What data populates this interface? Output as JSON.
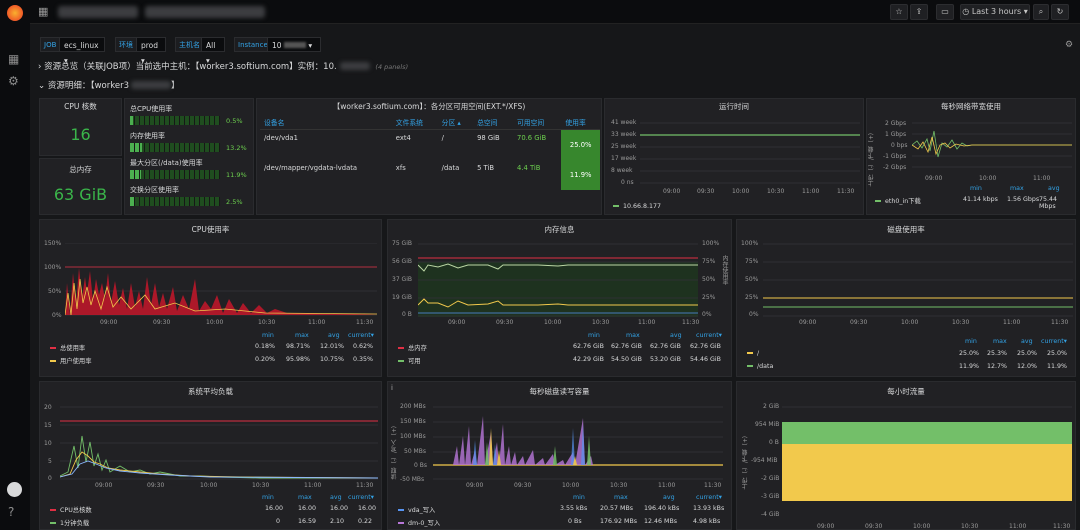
{
  "topbar": {
    "time_range": "Last 3 hours"
  },
  "vars": [
    {
      "label": "JOB",
      "value": "ecs_linux"
    },
    {
      "label": "环境",
      "value": "prod"
    },
    {
      "label": "主机名",
      "value": "All"
    },
    {
      "label": "Instance",
      "value": "10"
    }
  ],
  "rows": {
    "overview": "资源总览（关联JOB项）当前选中主机：【worker3.softium.com】实例：10.",
    "overview_count": "(4 panels)",
    "detail": "资源明细：【worker3"
  },
  "cpu_cores": {
    "title": "CPU 核数",
    "value": "16"
  },
  "total_mem": {
    "title": "总内存",
    "value": "63 GiB"
  },
  "bargauges": [
    {
      "label": "总CPU使用率",
      "pct": "0.5%",
      "fill": 0.005
    },
    {
      "label": "内存使用率",
      "pct": "13.2%",
      "fill": 0.132
    },
    {
      "label": "最大分区(/data)使用率",
      "pct": "11.9%",
      "fill": 0.119
    },
    {
      "label": "交换分区使用率",
      "pct": "2.5%",
      "fill": 0.025
    }
  ],
  "disk_table": {
    "title": "【worker3.softium.com】：各分区可用空间(EXT.*/XFS)",
    "headers": [
      "设备名",
      "文件系统",
      "分区 ▴",
      "总空间",
      "可用空间",
      "使用率"
    ],
    "rows": [
      [
        "/dev/vda1",
        "ext4",
        "/",
        "98 GiB",
        "70.6 GiB",
        "25.0%"
      ],
      [
        "/dev/mapper/vgdata-lvdata",
        "xfs",
        "/data",
        "5 TiB",
        "4.4 TiB",
        "11.9%"
      ]
    ]
  },
  "uptime": {
    "title": "运行时间",
    "yticks": [
      "41 week",
      "33 week",
      "25 week",
      "17 week",
      "8 week",
      "0 ns"
    ],
    "xticks": [
      "09:00",
      "09:30",
      "10:00",
      "10:30",
      "11:00",
      "11:30"
    ],
    "legend": "10.66.8.177"
  },
  "net": {
    "title": "每秒网络带宽使用",
    "yticks": [
      "2 Gbps",
      "1 Gbps",
      "0 bps",
      "-1 Gbps",
      "-2 Gbps"
    ],
    "xticks": [
      "09:00",
      "10:00",
      "11:00"
    ],
    "ylabel": "上传（-）/下载（+）",
    "heads": [
      "min",
      "max",
      "avg"
    ],
    "rows": [
      {
        "name": "eth0_in下载",
        "min": "41.14 kbps",
        "max": "1.56 Gbps",
        "avg": "75.44 Mbps"
      }
    ]
  },
  "cpu": {
    "title": "CPU使用率",
    "yticks": [
      "150%",
      "100%",
      "50%",
      "0%"
    ],
    "xticks": [
      "09:00",
      "09:30",
      "10:00",
      "10:30",
      "11:00",
      "11:30"
    ],
    "heads": [
      "min",
      "max",
      "avg",
      "current▾"
    ],
    "rows": [
      {
        "name": "总使用率",
        "min": "0.18%",
        "max": "98.71%",
        "avg": "12.01%",
        "cur": "0.62%",
        "color": "#e02f44"
      },
      {
        "name": "用户使用率",
        "min": "0.20%",
        "max": "95.98%",
        "avg": "10.75%",
        "cur": "0.35%",
        "color": "#f2c94c"
      }
    ]
  },
  "mem": {
    "title": "内存信息",
    "yticks": [
      "75 GiB",
      "56 GiB",
      "37 GiB",
      "19 GiB",
      "0 B"
    ],
    "yticks2": [
      "100%",
      "75%",
      "50%",
      "25%",
      "0%"
    ],
    "xticks": [
      "09:00",
      "09:30",
      "10:00",
      "10:30",
      "11:00",
      "11:30"
    ],
    "ylabel2": "内存使用率",
    "heads": [
      "min",
      "max",
      "avg",
      "current▾"
    ],
    "rows": [
      {
        "name": "总内存",
        "min": "62.76 GiB",
        "max": "62.76 GiB",
        "avg": "62.76 GiB",
        "cur": "62.76 GiB",
        "color": "#e02f44"
      },
      {
        "name": "可用",
        "min": "42.29 GiB",
        "max": "54.50 GiB",
        "avg": "53.20 GiB",
        "cur": "54.46 GiB",
        "color": "#73bf69"
      }
    ]
  },
  "disk": {
    "title": "磁盘使用率",
    "yticks": [
      "100%",
      "75%",
      "50%",
      "25%",
      "0%"
    ],
    "xticks": [
      "09:00",
      "09:30",
      "10:00",
      "10:30",
      "11:00",
      "11:30"
    ],
    "heads": [
      "min",
      "max",
      "avg",
      "current▾"
    ],
    "rows": [
      {
        "name": "/",
        "min": "25.0%",
        "max": "25.3%",
        "avg": "25.0%",
        "cur": "25.0%",
        "color": "#f2c94c"
      },
      {
        "name": "/data",
        "min": "11.9%",
        "max": "12.7%",
        "avg": "12.0%",
        "cur": "11.9%",
        "color": "#73bf69"
      }
    ]
  },
  "load": {
    "title": "系统平均负载",
    "yticks": [
      "20",
      "15",
      "10",
      "5",
      "0"
    ],
    "xticks": [
      "09:00",
      "09:30",
      "10:00",
      "10:30",
      "11:00",
      "11:30"
    ],
    "heads": [
      "min",
      "max",
      "avg",
      "current▾"
    ],
    "rows": [
      {
        "name": "CPU总核数",
        "min": "16.00",
        "max": "16.00",
        "avg": "16.00",
        "cur": "16.00",
        "color": "#e02f44"
      },
      {
        "name": "1分钟负载",
        "min": "0",
        "max": "16.59",
        "avg": "2.10",
        "cur": "0.22",
        "color": "#73bf69"
      }
    ]
  },
  "diskio": {
    "title": "每秒磁盘读写容量",
    "yticks": [
      "200 MBs",
      "150 MBs",
      "100 MBs",
      "50 MBs",
      "0 Bs",
      "-50 MBs"
    ],
    "xticks": [
      "09:00",
      "09:30",
      "10:00",
      "10:30",
      "11:00",
      "11:30"
    ],
    "ylabel": "读取（-）/写入（+）",
    "heads": [
      "min",
      "max",
      "avg",
      "current▾"
    ],
    "rows": [
      {
        "name": "vda_写入",
        "min": "3.55 kBs",
        "max": "20.57 MBs",
        "avg": "196.40 kBs",
        "cur": "13.93 kBs",
        "color": "#5794f2"
      },
      {
        "name": "dm-0_写入",
        "min": "0 Bs",
        "max": "176.92 MBs",
        "avg": "12.46 MBs",
        "cur": "4.98 kBs",
        "color": "#b877d9"
      }
    ]
  },
  "hourly": {
    "title": "每小时流量",
    "yticks": [
      "2 GiB",
      "954 MiB",
      "0 B",
      "-954 MiB",
      "-2 GiB",
      "-3 GiB",
      "-4 GiB"
    ],
    "xticks": [
      "09:00",
      "09:30",
      "10:00",
      "10:30",
      "11:00",
      "11:30"
    ],
    "ylabel": "上传（-）/下载（+）"
  }
}
